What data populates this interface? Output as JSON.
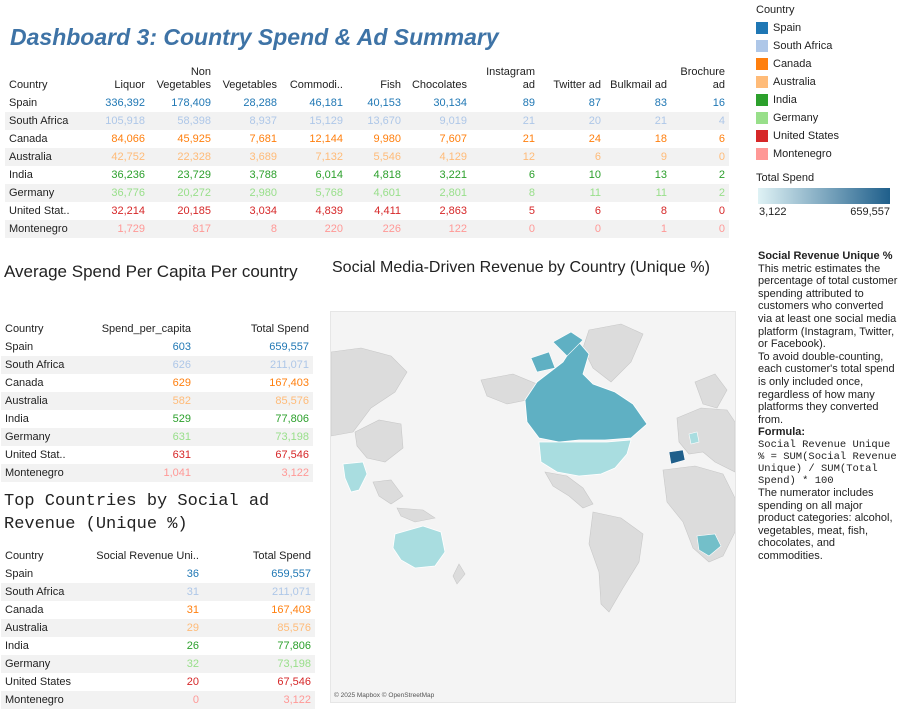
{
  "title": "Dashboard 3: Country Spend & Ad Summary",
  "colors": {
    "spain": "#1f77b4",
    "south_africa": "#aec7e8",
    "canada": "#ff7f0e",
    "australia": "#ffbb78",
    "india": "#2ca02c",
    "germany": "#98df8a",
    "united_states": "#d62728",
    "montenegro": "#ff9896"
  },
  "summary_table": {
    "headers": [
      "Country",
      "Liquor",
      "Non Vegetables",
      "Vegetables",
      "Commodi..",
      "Fish",
      "Chocolates",
      "Instagram ad",
      "Twitter ad",
      "Bulkmail ad",
      "Brochure ad"
    ],
    "rows": [
      [
        "Spain",
        "336,392",
        "178,409",
        "28,288",
        "46,181",
        "40,153",
        "30,134",
        "89",
        "87",
        "83",
        "16"
      ],
      [
        "South Africa",
        "105,918",
        "58,398",
        "8,937",
        "15,129",
        "13,670",
        "9,019",
        "21",
        "20",
        "21",
        "4"
      ],
      [
        "Canada",
        "84,066",
        "45,925",
        "7,681",
        "12,144",
        "9,980",
        "7,607",
        "21",
        "24",
        "18",
        "6"
      ],
      [
        "Australia",
        "42,752",
        "22,328",
        "3,689",
        "7,132",
        "5,546",
        "4,129",
        "12",
        "6",
        "9",
        "0"
      ],
      [
        "India",
        "36,236",
        "23,729",
        "3,788",
        "6,014",
        "4,818",
        "3,221",
        "6",
        "10",
        "13",
        "2"
      ],
      [
        "Germany",
        "36,776",
        "20,272",
        "2,980",
        "5,768",
        "4,601",
        "2,801",
        "8",
        "11",
        "11",
        "2"
      ],
      [
        "United Stat..",
        "32,214",
        "20,185",
        "3,034",
        "4,839",
        "4,411",
        "2,863",
        "5",
        "6",
        "8",
        "0"
      ],
      [
        "Montenegro",
        "1,729",
        "817",
        "8",
        "220",
        "226",
        "122",
        "0",
        "0",
        "1",
        "0"
      ]
    ]
  },
  "per_capita": {
    "title": "Average Spend Per Capita Per country",
    "headers": [
      "Country",
      "Spend_per_capita",
      "Total Spend"
    ],
    "rows": [
      [
        "Spain",
        "603",
        "659,557"
      ],
      [
        "South Africa",
        "626",
        "211,071"
      ],
      [
        "Canada",
        "629",
        "167,403"
      ],
      [
        "Australia",
        "582",
        "85,576"
      ],
      [
        "India",
        "529",
        "77,806"
      ],
      [
        "Germany",
        "631",
        "73,198"
      ],
      [
        "United Stat..",
        "631",
        "67,546"
      ],
      [
        "Montenegro",
        "1,041",
        "3,122"
      ]
    ]
  },
  "social_top": {
    "title": "Top Countries by Social ad Revenue (Unique %)",
    "headers": [
      "Country",
      "Social Revenue Uni..",
      "Total Spend"
    ],
    "rows": [
      [
        "Spain",
        "36",
        "659,557"
      ],
      [
        "South Africa",
        "31",
        "211,071"
      ],
      [
        "Canada",
        "31",
        "167,403"
      ],
      [
        "Australia",
        "29",
        "85,576"
      ],
      [
        "India",
        "26",
        "77,806"
      ],
      [
        "Germany",
        "32",
        "73,198"
      ],
      [
        "United States",
        "20",
        "67,546"
      ],
      [
        "Montenegro",
        "0",
        "3,122"
      ]
    ]
  },
  "map": {
    "title": "Social Media-Driven Revenue by Country (Unique %)",
    "attribution": "© 2025 Mapbox © OpenStreetMap"
  },
  "legend": {
    "country_title": "Country",
    "countries": [
      "Spain",
      "South Africa",
      "Canada",
      "Australia",
      "India",
      "Germany",
      "United States",
      "Montenegro"
    ],
    "total_spend_title": "Total Spend",
    "min": "3,122",
    "max": "659,557"
  },
  "note": {
    "heading": "Social Revenue Unique %",
    "p1": "This metric estimates the percentage of total customer spending attributed to customers who converted via at least one social media platform (Instagram, Twitter, or Facebook).",
    "p2": "To avoid double-counting, each customer's total spend is only included once, regardless of how many platforms they converted from.",
    "formula_label": "Formula:",
    "formula": "Social Revenue Unique % = SUM(Social Revenue Unique) / SUM(Total Spend) * 100",
    "p3": "The numerator includes spending on all major product categories: alcohol, vegetables, meat, fish, chocolates, and commodities."
  }
}
